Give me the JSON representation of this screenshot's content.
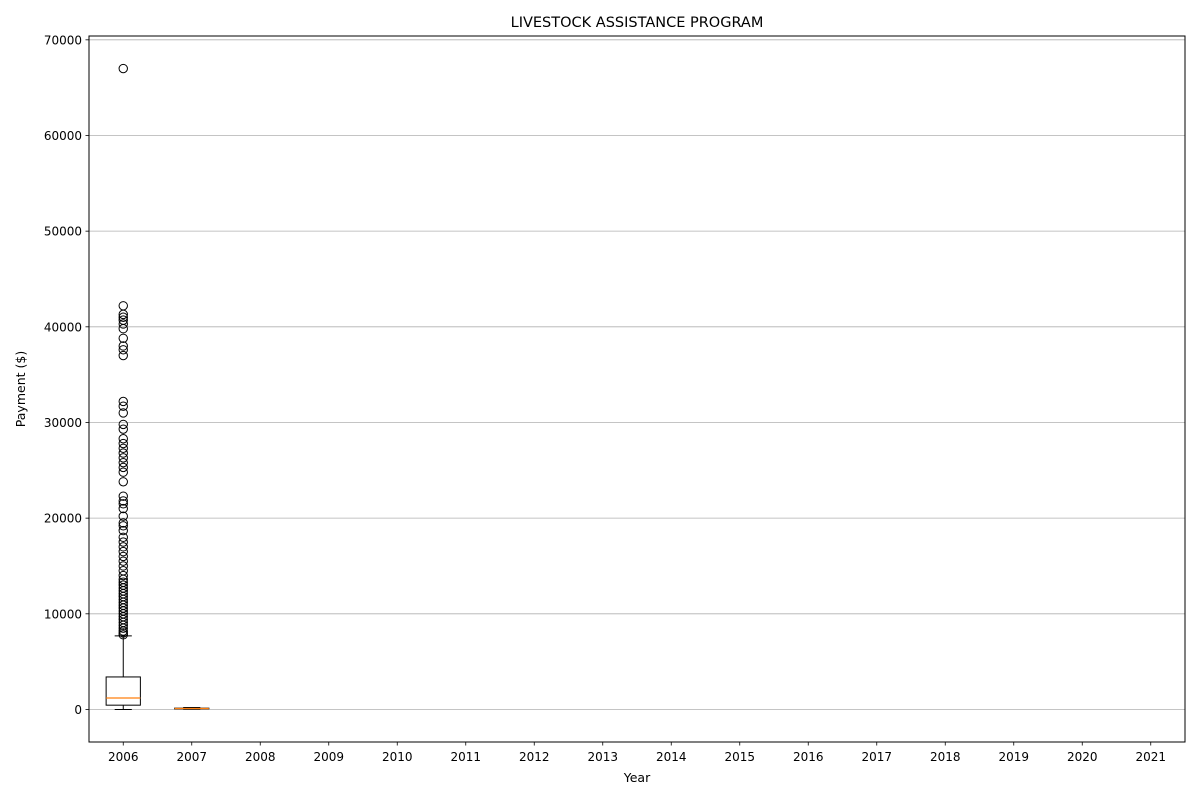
{
  "chart_data": {
    "type": "box",
    "title": "LIVESTOCK ASSISTANCE PROGRAM",
    "xlabel": "Year",
    "ylabel": "Payment ($)",
    "ylim": [
      -3400,
      70400
    ],
    "yticks": [
      0,
      10000,
      20000,
      30000,
      40000,
      50000,
      60000,
      70000
    ],
    "grid": "y",
    "categories": [
      "2006",
      "2007",
      "2008",
      "2009",
      "2010",
      "2011",
      "2012",
      "2013",
      "2014",
      "2015",
      "2016",
      "2017",
      "2018",
      "2019",
      "2020",
      "2021"
    ],
    "boxes": [
      {
        "category": "2006",
        "whisker_low": 0,
        "q1": 450,
        "median": 1200,
        "q3": 3400,
        "whisker_high": 7700,
        "outliers": [
          7800,
          8000,
          8200,
          8500,
          8800,
          9100,
          9400,
          9700,
          10000,
          10300,
          10600,
          10900,
          11200,
          11500,
          11800,
          12100,
          12400,
          12700,
          13000,
          13300,
          13600,
          14000,
          14500,
          15000,
          15500,
          16000,
          16500,
          17000,
          17500,
          18000,
          18700,
          19200,
          19500,
          20200,
          21000,
          21500,
          21800,
          22300,
          23800,
          24800,
          25300,
          25800,
          26300,
          26800,
          27300,
          27800,
          28300,
          29300,
          29800,
          31000,
          31700,
          32200,
          37000,
          37600,
          38000,
          38800,
          39800,
          40300,
          40700,
          41000,
          41300,
          42200,
          67000
        ]
      },
      {
        "category": "2007",
        "whisker_low": 20,
        "q1": 60,
        "median": 100,
        "q3": 140,
        "whisker_high": 200,
        "outliers": []
      }
    ]
  }
}
